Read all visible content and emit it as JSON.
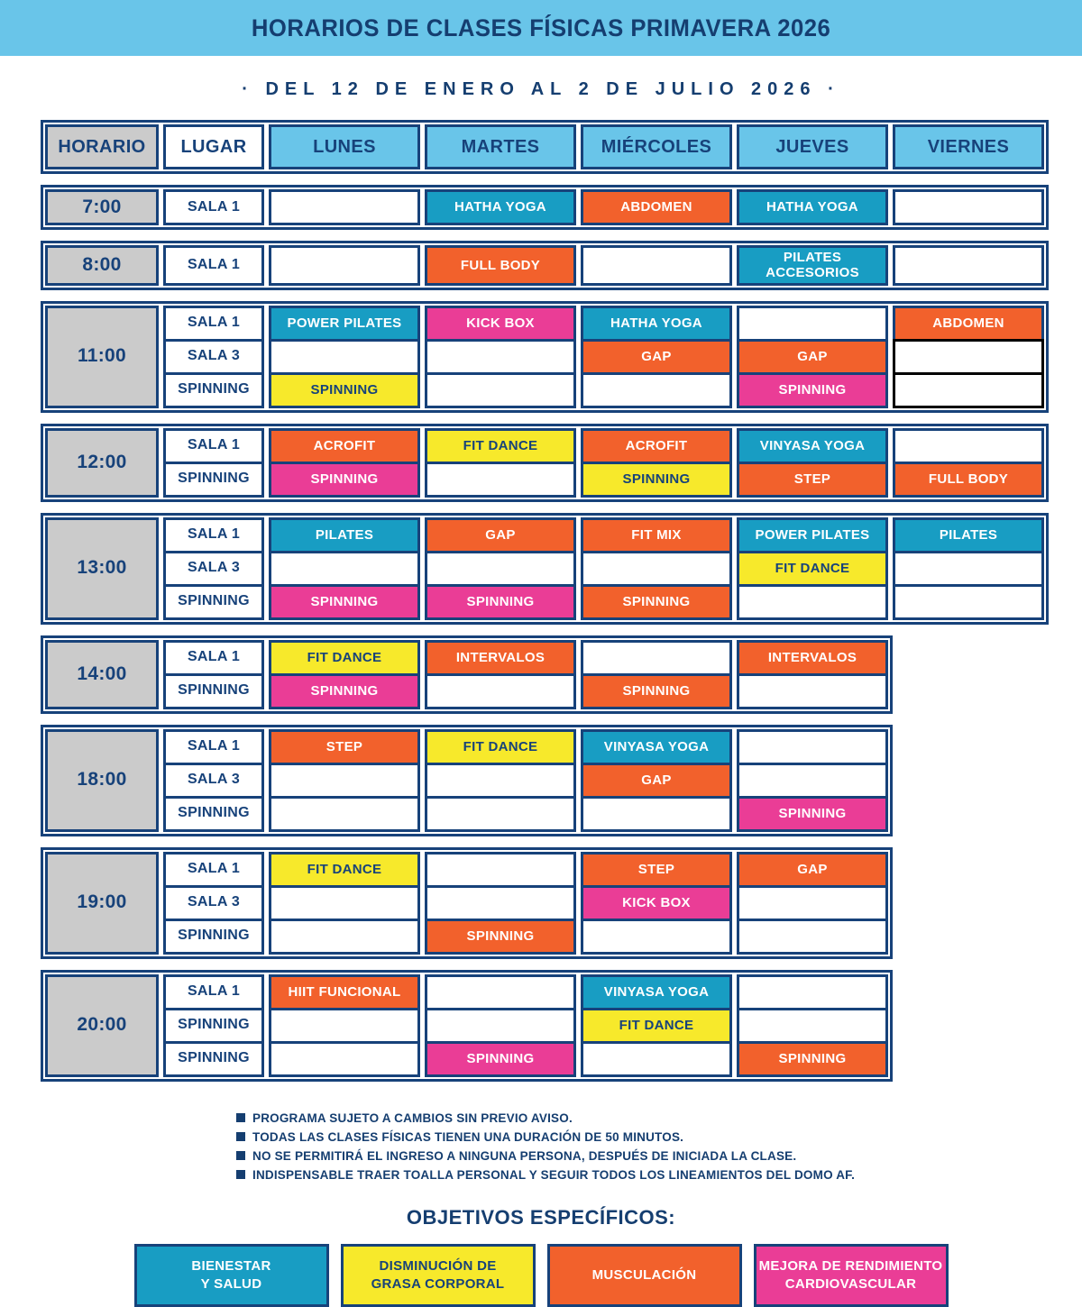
{
  "banner": {
    "title": "HORARIOS DE CLASES FÍSICAS PRIMAVERA 2026"
  },
  "subtitle": "· DEL 12 DE ENERO AL 2 DE JULIO 2026 ·",
  "colors": {
    "light_blue": "#69C5E9",
    "navy": "#17427A",
    "gray": "#CBCBCB",
    "teal": "#189DC3",
    "orange": "#F2612C",
    "yellow": "#F7E92B",
    "magenta": "#EA3D96",
    "special_empty_border": "#000000"
  },
  "header": {
    "columns": [
      "HORARIO",
      "LUGAR",
      "LUNES",
      "MARTES",
      "MIÉRCOLES",
      "JUEVES",
      "VIERNES"
    ]
  },
  "schedule": [
    {
      "time": "7:00",
      "rows": [
        {
          "place": "SALA 1",
          "cells": [
            null,
            {
              "label": "HATHA YOGA",
              "color": "teal"
            },
            {
              "label": "ABDOMEN",
              "color": "orange"
            },
            {
              "label": "HATHA YOGA",
              "color": "teal"
            },
            null
          ]
        }
      ]
    },
    {
      "time": "8:00",
      "rows": [
        {
          "place": "SALA 1",
          "cells": [
            null,
            {
              "label": "FULL BODY",
              "color": "orange"
            },
            null,
            {
              "label": "PILATES\nACCESORIOS",
              "color": "teal"
            },
            null
          ]
        }
      ]
    },
    {
      "time": "11:00",
      "rows": [
        {
          "place": "SALA 1",
          "cells": [
            {
              "label": "POWER PILATES",
              "color": "teal"
            },
            {
              "label": "KICK BOX",
              "color": "magenta"
            },
            {
              "label": "HATHA YOGA",
              "color": "teal"
            },
            null,
            {
              "label": "ABDOMEN",
              "color": "orange"
            }
          ]
        },
        {
          "place": "SALA 3",
          "cells": [
            null,
            null,
            {
              "label": "GAP",
              "color": "orange"
            },
            {
              "label": "GAP",
              "color": "orange"
            },
            {
              "label": "",
              "color": "white",
              "border": "black"
            }
          ]
        },
        {
          "place": "SPINNING",
          "cells": [
            {
              "label": "SPINNING",
              "color": "yellow"
            },
            null,
            null,
            {
              "label": "SPINNING",
              "color": "magenta"
            },
            {
              "label": "",
              "color": "white",
              "border": "black"
            }
          ]
        }
      ]
    },
    {
      "time": "12:00",
      "rows": [
        {
          "place": "SALA 1",
          "cells": [
            {
              "label": "ACROFIT",
              "color": "orange"
            },
            {
              "label": "FIT DANCE",
              "color": "yellow"
            },
            {
              "label": "ACROFIT",
              "color": "orange"
            },
            {
              "label": "VINYASA YOGA",
              "color": "teal"
            },
            null
          ]
        },
        {
          "place": "SPINNING",
          "cells": [
            {
              "label": "SPINNING",
              "color": "magenta"
            },
            null,
            {
              "label": "SPINNING",
              "color": "yellow"
            },
            {
              "label": "STEP",
              "color": "orange"
            },
            {
              "label": "FULL BODY",
              "color": "orange"
            }
          ]
        }
      ]
    },
    {
      "time": "13:00",
      "rows": [
        {
          "place": "SALA 1",
          "cells": [
            {
              "label": "PILATES",
              "color": "teal"
            },
            {
              "label": "GAP",
              "color": "orange"
            },
            {
              "label": "FIT MIX",
              "color": "orange"
            },
            {
              "label": "POWER PILATES",
              "color": "teal"
            },
            {
              "label": "PILATES",
              "color": "teal"
            }
          ]
        },
        {
          "place": "SALA 3",
          "cells": [
            null,
            null,
            null,
            {
              "label": "FIT DANCE",
              "color": "yellow"
            },
            null
          ]
        },
        {
          "place": "SPINNING",
          "cells": [
            {
              "label": "SPINNING",
              "color": "magenta"
            },
            {
              "label": "SPINNING",
              "color": "magenta"
            },
            {
              "label": "SPINNING",
              "color": "orange"
            },
            null,
            null
          ]
        }
      ]
    },
    {
      "time": "14:00",
      "rows": [
        {
          "place": "SALA 1",
          "cells": [
            {
              "label": "FIT DANCE",
              "color": "yellow"
            },
            {
              "label": "INTERVALOS",
              "color": "orange"
            },
            null,
            {
              "label": "INTERVALOS",
              "color": "orange"
            }
          ]
        },
        {
          "place": "SPINNING",
          "cells": [
            {
              "label": "SPINNING",
              "color": "magenta"
            },
            null,
            {
              "label": "SPINNING",
              "color": "orange"
            },
            null
          ]
        }
      ]
    },
    {
      "time": "18:00",
      "rows": [
        {
          "place": "SALA 1",
          "cells": [
            {
              "label": "STEP",
              "color": "orange"
            },
            {
              "label": "FIT DANCE",
              "color": "yellow"
            },
            {
              "label": "VINYASA YOGA",
              "color": "teal"
            },
            null
          ]
        },
        {
          "place": "SALA 3",
          "cells": [
            null,
            null,
            {
              "label": "GAP",
              "color": "orange"
            },
            null
          ]
        },
        {
          "place": "SPINNING",
          "cells": [
            null,
            null,
            null,
            {
              "label": "SPINNING",
              "color": "magenta"
            }
          ]
        }
      ]
    },
    {
      "time": "19:00",
      "rows": [
        {
          "place": "SALA 1",
          "cells": [
            {
              "label": "FIT DANCE",
              "color": "yellow"
            },
            null,
            {
              "label": "STEP",
              "color": "orange"
            },
            {
              "label": "GAP",
              "color": "orange"
            }
          ]
        },
        {
          "place": "SALA 3",
          "cells": [
            null,
            null,
            {
              "label": "KICK BOX",
              "color": "magenta"
            },
            null
          ]
        },
        {
          "place": "SPINNING",
          "cells": [
            null,
            {
              "label": "SPINNING",
              "color": "orange"
            },
            null,
            null
          ]
        }
      ]
    },
    {
      "time": "20:00",
      "rows": [
        {
          "place": "SALA 1",
          "cells": [
            {
              "label": "HIIT FUNCIONAL",
              "color": "orange"
            },
            null,
            {
              "label": "VINYASA YOGA",
              "color": "teal"
            },
            null
          ]
        },
        {
          "place": "SPINNING",
          "cells": [
            null,
            null,
            {
              "label": "FIT DANCE",
              "color": "yellow"
            },
            null
          ]
        },
        {
          "place": "SPINNING",
          "cells": [
            null,
            {
              "label": "SPINNING",
              "color": "magenta"
            },
            null,
            {
              "label": "SPINNING",
              "color": "orange"
            }
          ]
        }
      ]
    }
  ],
  "notes": [
    "PROGRAMA SUJETO A CAMBIOS SIN PREVIO AVISO.",
    "TODAS LAS CLASES FÍSICAS TIENEN UNA DURACIÓN DE 50 MINUTOS.",
    "NO SE PERMITIRÁ EL INGRESO A NINGUNA PERSONA, DESPUÉS DE INICIADA LA CLASE.",
    "INDISPENSABLE TRAER TOALLA PERSONAL Y SEGUIR TODOS LOS LINEAMIENTOS DEL DOMO AF."
  ],
  "objectives": {
    "title": "OBJETIVOS ESPECÍFICOS:",
    "items": [
      {
        "label": "BIENESTAR\nY SALUD",
        "color": "teal"
      },
      {
        "label": "DISMINUCIÓN DE\nGRASA CORPORAL",
        "color": "yellow"
      },
      {
        "label": "MUSCULACIÓN",
        "color": "orange"
      },
      {
        "label": "MEJORA DE RENDIMIENTO\nCARDIOVASCULAR",
        "color": "magenta"
      }
    ]
  }
}
